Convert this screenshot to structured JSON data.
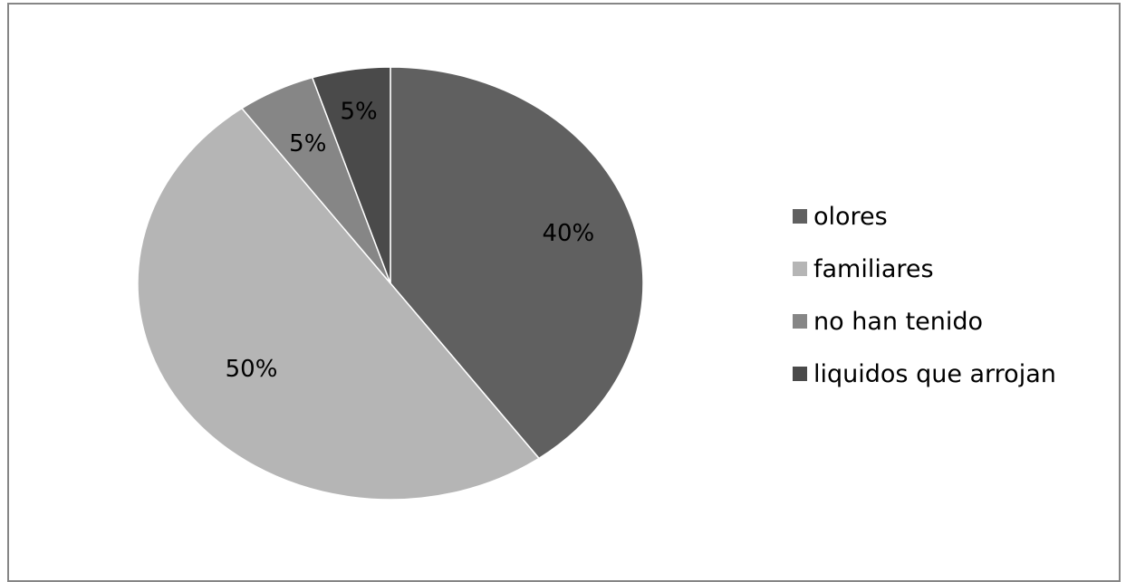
{
  "chart_data": {
    "type": "pie",
    "categories": [
      "olores",
      "familiares",
      "no han tenido",
      "liquidos que arrojan"
    ],
    "values": [
      40,
      50,
      5,
      5
    ],
    "data_labels": [
      "40%",
      "50%",
      "5%",
      "5%"
    ],
    "colors": [
      "#606060",
      "#b5b5b5",
      "#868686",
      "#4a4a4a"
    ],
    "legend_position": "right",
    "start_angle": "top, clockwise"
  }
}
